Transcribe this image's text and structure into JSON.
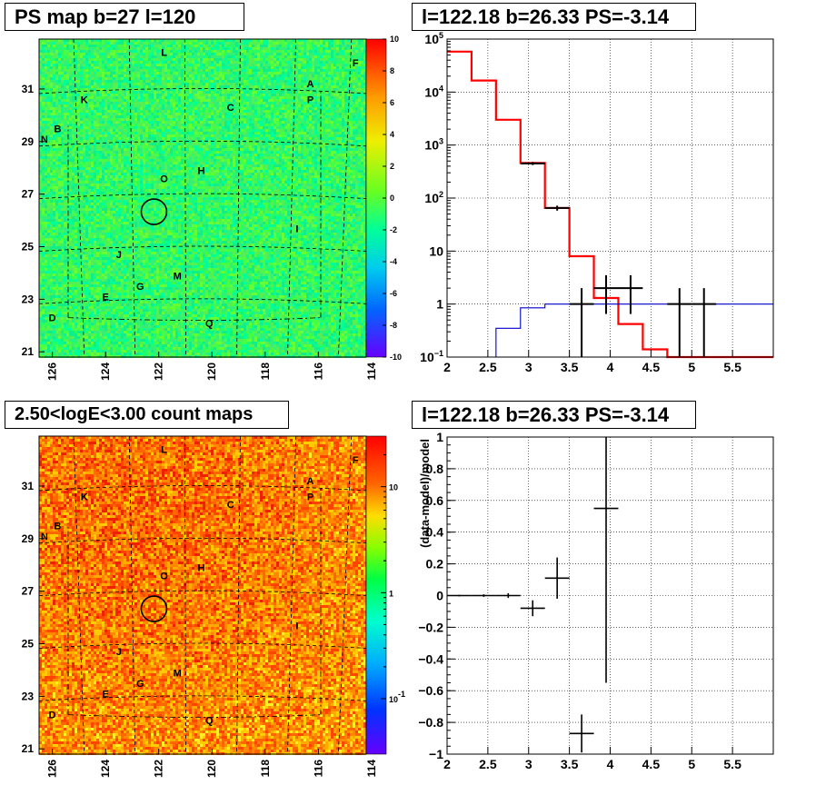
{
  "titles": {
    "map1": "PS map b=27 l=120",
    "spec": "l=122.18 b=26.33 PS=-3.14",
    "map2": "2.50<logE<3.00 count maps",
    "resid": "l=122.18 b=26.33 PS=-3.14"
  },
  "colors": {
    "model": "#ff0000",
    "background": "#0000cc",
    "data": "#000000"
  },
  "chart_data": [
    {
      "type": "heatmap",
      "title": "PS map b=27 l=120",
      "x_ticks": [
        "126",
        "124",
        "122",
        "120",
        "118",
        "116",
        "114"
      ],
      "y_ticks": [
        "31",
        "29",
        "27",
        "25",
        "23",
        "21"
      ],
      "colorbar_ticks": [
        "10",
        "8",
        "6",
        "4",
        "2",
        "0",
        "-2",
        "-4",
        "-6",
        "-8",
        "-10"
      ],
      "colorbar_range": [
        -10,
        10
      ],
      "marker": {
        "l": 122.18,
        "b": 26.33
      },
      "sources": [
        {
          "label": "L",
          "l": 121.8,
          "b": 32.4
        },
        {
          "label": "F",
          "l": 114.6,
          "b": 32.0
        },
        {
          "label": "A",
          "l": 116.3,
          "b": 31.2
        },
        {
          "label": "K",
          "l": 124.8,
          "b": 30.6
        },
        {
          "label": "P",
          "l": 116.3,
          "b": 30.6
        },
        {
          "label": "C",
          "l": 119.3,
          "b": 30.3
        },
        {
          "label": "B",
          "l": 125.8,
          "b": 29.5
        },
        {
          "label": "N",
          "l": 126.3,
          "b": 29.1
        },
        {
          "label": "H",
          "l": 120.4,
          "b": 27.9
        },
        {
          "label": "O",
          "l": 121.8,
          "b": 27.6
        },
        {
          "label": "I",
          "l": 116.8,
          "b": 25.7
        },
        {
          "label": "J",
          "l": 123.5,
          "b": 24.7
        },
        {
          "label": "M",
          "l": 121.3,
          "b": 23.9
        },
        {
          "label": "G",
          "l": 122.7,
          "b": 23.5
        },
        {
          "label": "E",
          "l": 124.0,
          "b": 23.1
        },
        {
          "label": "D",
          "l": 126.0,
          "b": 22.3
        },
        {
          "label": "Q",
          "l": 120.1,
          "b": 22.1
        }
      ]
    },
    {
      "type": "line",
      "title": "l=122.18 b=26.33 PS=-3.14",
      "xlim": [
        2,
        6
      ],
      "ylim": [
        0.1,
        100000
      ],
      "y_scale": "log",
      "grid": true,
      "x_ticks": [
        "2",
        "2.5",
        "3",
        "3.5",
        "4",
        "4.5",
        "5",
        "5.5"
      ],
      "y_ticks": [
        {
          "v": 100000,
          "base": "10",
          "exp": "5"
        },
        {
          "v": 10000,
          "base": "10",
          "exp": "4"
        },
        {
          "v": 1000,
          "base": "10",
          "exp": "3"
        },
        {
          "v": 100,
          "base": "10",
          "exp": "2"
        },
        {
          "v": 10,
          "base": "10",
          "exp": ""
        },
        {
          "v": 1,
          "base": "1",
          "exp": ""
        },
        {
          "v": 0.1,
          "base": "10",
          "exp": "−1"
        }
      ],
      "series": [
        {
          "style": "step",
          "color": "#ff0000",
          "edges": [
            2.0,
            2.3,
            2.6,
            2.9,
            3.2,
            3.5,
            3.8,
            4.1,
            4.4,
            4.7,
            5.0,
            5.3,
            5.6,
            6.0
          ],
          "values": [
            58000,
            16500,
            3000,
            460,
            65,
            8,
            1.3,
            0.42,
            0.14,
            0.1,
            0.1,
            0.1,
            0.1
          ]
        },
        {
          "style": "step",
          "color": "#0000cc",
          "edges": [
            2.0,
            2.3,
            2.6,
            2.9,
            3.2,
            3.5,
            3.8,
            4.1,
            4.4,
            4.7,
            5.0,
            5.3,
            5.6,
            6.0
          ],
          "values": [
            0.1,
            0.1,
            0.35,
            0.85,
            1.0,
            1.0,
            1.0,
            1.0,
            1.0,
            1.0,
            1.0,
            1.0,
            1.0
          ]
        },
        {
          "style": "errorbar",
          "color": "#000000",
          "points": [
            {
              "x": 3.05,
              "xerr": 0.15,
              "y": 450,
              "ylo": 420,
              "yhi": 480
            },
            {
              "x": 3.35,
              "xerr": 0.15,
              "y": 65,
              "ylo": 58,
              "yhi": 72
            },
            {
              "x": 3.65,
              "xerr": 0.15,
              "y": 1,
              "ylo": 0.1,
              "yhi": 2
            },
            {
              "x": 3.95,
              "xerr": 0.15,
              "y": 2,
              "ylo": 0.65,
              "yhi": 3.5
            },
            {
              "x": 4.25,
              "xerr": 0.15,
              "y": 2,
              "ylo": 0.65,
              "yhi": 3.5
            },
            {
              "x": 4.85,
              "xerr": 0.15,
              "y": 1,
              "ylo": 0.1,
              "yhi": 2
            },
            {
              "x": 5.15,
              "xerr": 0.15,
              "y": 1,
              "ylo": 0.1,
              "yhi": 2
            }
          ]
        }
      ]
    },
    {
      "type": "heatmap",
      "title": "2.50<logE<3.00 count maps",
      "x_ticks": [
        "126",
        "124",
        "122",
        "120",
        "118",
        "116",
        "114"
      ],
      "y_ticks": [
        "31",
        "29",
        "27",
        "25",
        "23",
        "21"
      ],
      "colorbar_scale": "log",
      "colorbar_ticks": [
        {
          "v": 10,
          "base": "10",
          "exp": ""
        },
        {
          "v": 1,
          "base": "1",
          "exp": ""
        },
        {
          "v": 0.1,
          "base": "10",
          "exp": "-1"
        }
      ],
      "marker": {
        "l": 122.18,
        "b": 26.33
      }
    },
    {
      "type": "scatter",
      "title": "l=122.18 b=26.33 PS=-3.14",
      "ylabel": "(data-model)/model",
      "xlim": [
        2,
        6
      ],
      "ylim": [
        -1,
        1
      ],
      "grid": true,
      "x_ticks": [
        "2",
        "2.5",
        "3",
        "3.5",
        "4",
        "4.5",
        "5",
        "5.5"
      ],
      "y_ticks": [
        "1",
        "0.8",
        "0.6",
        "0.4",
        "0.2",
        "0",
        "−0.2",
        "−0.4",
        "−0.6",
        "−0.8",
        "−1"
      ],
      "points": [
        {
          "x": 2.15,
          "xerr": 0.15,
          "y": 0.0,
          "yerr": 0.005
        },
        {
          "x": 2.45,
          "xerr": 0.15,
          "y": 0.0,
          "yerr": 0.008
        },
        {
          "x": 2.75,
          "xerr": 0.15,
          "y": 0.0,
          "yerr": 0.015
        },
        {
          "x": 3.05,
          "xerr": 0.15,
          "y": -0.08,
          "yerr": 0.05
        },
        {
          "x": 3.35,
          "xerr": 0.15,
          "y": 0.11,
          "yerr": 0.13
        },
        {
          "x": 3.65,
          "xerr": 0.15,
          "y": -0.87,
          "yerr": 0.12
        },
        {
          "x": 3.95,
          "xerr": 0.15,
          "y": 0.55,
          "ylo": -0.55,
          "yhi": 1.0
        }
      ]
    }
  ]
}
